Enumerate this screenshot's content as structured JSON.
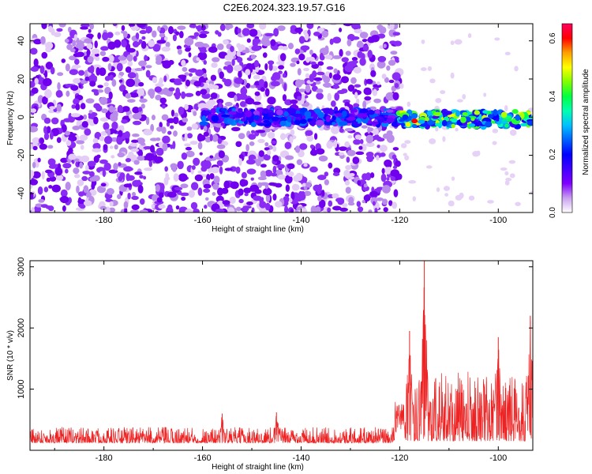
{
  "title": "C2E6.2024.323.19.57.G16",
  "chart_data": [
    {
      "type": "heatmap",
      "xlabel": "Height of straight line (km)",
      "ylabel": "Frequency (Hz)",
      "xlim": [
        -195,
        -93
      ],
      "ylim": [
        -50,
        49
      ],
      "xticks": [
        -180,
        -160,
        -140,
        -120,
        -100
      ],
      "yticks": [
        -40,
        -20,
        0,
        20,
        40
      ],
      "colorbar": {
        "label": "Normalized spectral amplitude",
        "range": [
          0,
          0.65
        ],
        "ticks": [
          0.0,
          0.2,
          0.4,
          0.6
        ],
        "colors": [
          "#ffffff",
          "#c9a0f0",
          "#7f00ff",
          "#3f00ff",
          "#0000ff",
          "#0060ff",
          "#00c0ff",
          "#00ffb0",
          "#00ff40",
          "#80ff00",
          "#ffff00",
          "#ffa000",
          "#ff0000",
          "#ff0060"
        ]
      },
      "noise_region": {
        "x_range": [
          -195,
          -120
        ],
        "freq_range": [
          -50,
          49
        ],
        "amplitude": 0.08
      },
      "signal_band": [
        {
          "x_range": [
            -160,
            -120
          ],
          "freq_center": 0,
          "freq_halfwidth": 4,
          "amplitude": 0.25
        },
        {
          "x_range": [
            -120,
            -93
          ],
          "freq_center": -1,
          "freq_halfwidth": 4,
          "amplitude": 0.45,
          "peak": {
            "x": -117,
            "freq": -2,
            "amplitude": 0.6
          }
        }
      ]
    },
    {
      "type": "line",
      "xlabel": "Height of straight line (km)",
      "ylabel": "SNR (10 * v/v)",
      "xlim": [
        -195,
        -93
      ],
      "ylim": [
        0,
        3100
      ],
      "xticks": [
        -180,
        -160,
        -140,
        -120,
        -100
      ],
      "yticks": [
        1000,
        2000,
        3000
      ],
      "series": [
        {
          "color": "#ee2222",
          "x": [
            -195,
            -185,
            -175,
            -165,
            -160,
            -155,
            -150,
            -145,
            -140,
            -135,
            -130,
            -125,
            -121,
            -120,
            -119,
            -118,
            -117,
            -116,
            -115,
            -114,
            -113,
            -112,
            -110,
            -108,
            -106,
            -104,
            -102,
            -100,
            -98,
            -96,
            -94,
            -93
          ],
          "y": [
            230,
            250,
            245,
            260,
            280,
            300,
            290,
            320,
            300,
            310,
            320,
            330,
            340,
            300,
            900,
            1900,
            1200,
            2600,
            3100,
            1400,
            800,
            700,
            850,
            700,
            900,
            750,
            800,
            1000,
            850,
            600,
            2200,
            1300
          ],
          "spikes": [
            {
              "x": -156,
              "y": 600
            },
            {
              "x": -145,
              "y": 620
            },
            {
              "x": -118,
              "y": 1950
            },
            {
              "x": -115,
              "y": 3100
            },
            {
              "x": -100,
              "y": 1850
            },
            {
              "x": -93.5,
              "y": 2200
            }
          ],
          "noise_level": [
            {
              "x_range": [
                -195,
                -121
              ],
              "min": 120,
              "max": 380
            },
            {
              "x_range": [
                -119,
                -93
              ],
              "min": 150,
              "max": 1300
            }
          ]
        }
      ]
    }
  ]
}
